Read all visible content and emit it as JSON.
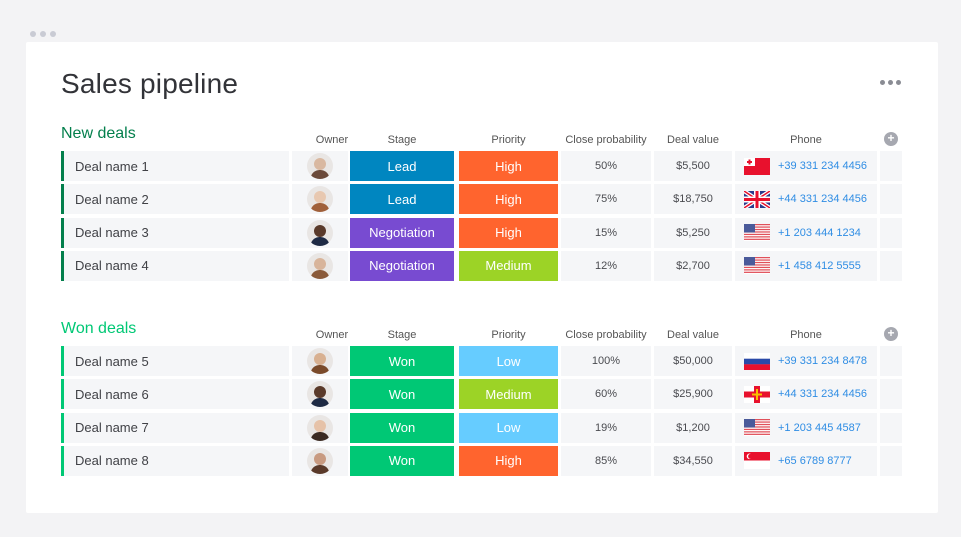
{
  "page": {
    "title": "Sales pipeline"
  },
  "columns": {
    "owner": "Owner",
    "stage": "Stage",
    "priority": "Priority",
    "close_probability": "Close probability",
    "deal_value": "Deal value",
    "phone": "Phone"
  },
  "colors": {
    "new_group": "#037f4c",
    "won_group": "#00c875",
    "lead": "#0086c0",
    "negotiation": "#784bd1",
    "won": "#00c875",
    "high": "#ff642e",
    "medium": "#9cd326",
    "low": "#66ccff",
    "phone_link": "#2f8de4"
  },
  "groups": [
    {
      "title": "New deals",
      "color": "#037f4c",
      "rows": [
        {
          "name": "Deal name 1",
          "owner": "woman-1",
          "stage": "Lead",
          "stage_color": "#0086c0",
          "priority": "High",
          "priority_color": "#ff642e",
          "probability": "50%",
          "value": "$5,500",
          "flag": "tonga",
          "phone": "+39 331 234 4456"
        },
        {
          "name": "Deal name 2",
          "owner": "woman-2",
          "stage": "Lead",
          "stage_color": "#0086c0",
          "priority": "High",
          "priority_color": "#ff642e",
          "probability": "75%",
          "value": "$18,750",
          "flag": "uk",
          "phone": "+44 331 234 4456"
        },
        {
          "name": "Deal name 3",
          "owner": "man-1",
          "stage": "Negotiation",
          "stage_color": "#784bd1",
          "priority": "High",
          "priority_color": "#ff642e",
          "probability": "15%",
          "value": "$5,250",
          "flag": "us",
          "phone": "+1 203 444 1234"
        },
        {
          "name": "Deal name 4",
          "owner": "man-2",
          "stage": "Negotiation",
          "stage_color": "#784bd1",
          "priority": "Medium",
          "priority_color": "#9cd326",
          "probability": "12%",
          "value": "$2,700",
          "flag": "us",
          "phone": "+1 458 412 5555"
        }
      ]
    },
    {
      "title": "Won deals",
      "color": "#00c875",
      "rows": [
        {
          "name": "Deal name 5",
          "owner": "man-3",
          "stage": "Won",
          "stage_color": "#00c875",
          "priority": "Low",
          "priority_color": "#66ccff",
          "probability": "100%",
          "value": "$50,000",
          "flag": "russia",
          "phone": "+39 331 234 8478"
        },
        {
          "name": "Deal name 6",
          "owner": "man-1",
          "stage": "Won",
          "stage_color": "#00c875",
          "priority": "Medium",
          "priority_color": "#9cd326",
          "probability": "60%",
          "value": "$25,900",
          "flag": "guernsey",
          "phone": "+44 331 234 4456"
        },
        {
          "name": "Deal name 7",
          "owner": "woman-3",
          "stage": "Won",
          "stage_color": "#00c875",
          "priority": "Low",
          "priority_color": "#66ccff",
          "probability": "19%",
          "value": "$1,200",
          "flag": "us",
          "phone": "+1 203 445 4587"
        },
        {
          "name": "Deal name 8",
          "owner": "man-4",
          "stage": "Won",
          "stage_color": "#00c875",
          "priority": "High",
          "priority_color": "#ff642e",
          "probability": "85%",
          "value": "$34,550",
          "flag": "singapore",
          "phone": "+65 6789 8777"
        }
      ]
    }
  ]
}
